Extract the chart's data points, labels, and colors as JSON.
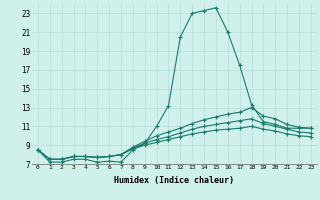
{
  "title": "",
  "xlabel": "Humidex (Indice chaleur)",
  "bg_color": "#cff0eb",
  "line_color": "#1a7a6e",
  "grid_color": "#b8ddd8",
  "xlim": [
    -0.5,
    23.5
  ],
  "ylim": [
    7,
    24
  ],
  "yticks": [
    7,
    9,
    11,
    13,
    15,
    17,
    19,
    21,
    23
  ],
  "xticks": [
    0,
    1,
    2,
    3,
    4,
    5,
    6,
    7,
    8,
    9,
    10,
    11,
    12,
    13,
    14,
    15,
    16,
    17,
    18,
    19,
    20,
    21,
    22,
    23
  ],
  "curves": [
    [
      8.5,
      7.2,
      7.2,
      7.5,
      7.5,
      7.2,
      7.3,
      7.2,
      8.5,
      9.2,
      11.0,
      13.2,
      20.5,
      23.0,
      23.3,
      23.6,
      21.0,
      17.5,
      13.3,
      11.5,
      11.2,
      10.8,
      10.8,
      10.8
    ],
    [
      8.5,
      7.5,
      7.5,
      7.8,
      7.8,
      7.7,
      7.8,
      8.0,
      8.8,
      9.4,
      10.0,
      10.4,
      10.8,
      11.3,
      11.7,
      12.0,
      12.3,
      12.5,
      13.0,
      12.1,
      11.8,
      11.2,
      10.9,
      10.8
    ],
    [
      8.5,
      7.5,
      7.5,
      7.8,
      7.8,
      7.7,
      7.8,
      8.0,
      8.7,
      9.2,
      9.6,
      9.9,
      10.3,
      10.7,
      11.0,
      11.2,
      11.4,
      11.6,
      11.8,
      11.3,
      11.0,
      10.7,
      10.4,
      10.3
    ],
    [
      8.5,
      7.5,
      7.5,
      7.8,
      7.8,
      7.7,
      7.8,
      8.0,
      8.6,
      9.0,
      9.3,
      9.6,
      9.9,
      10.2,
      10.4,
      10.6,
      10.7,
      10.8,
      11.0,
      10.7,
      10.5,
      10.2,
      10.0,
      9.9
    ]
  ]
}
